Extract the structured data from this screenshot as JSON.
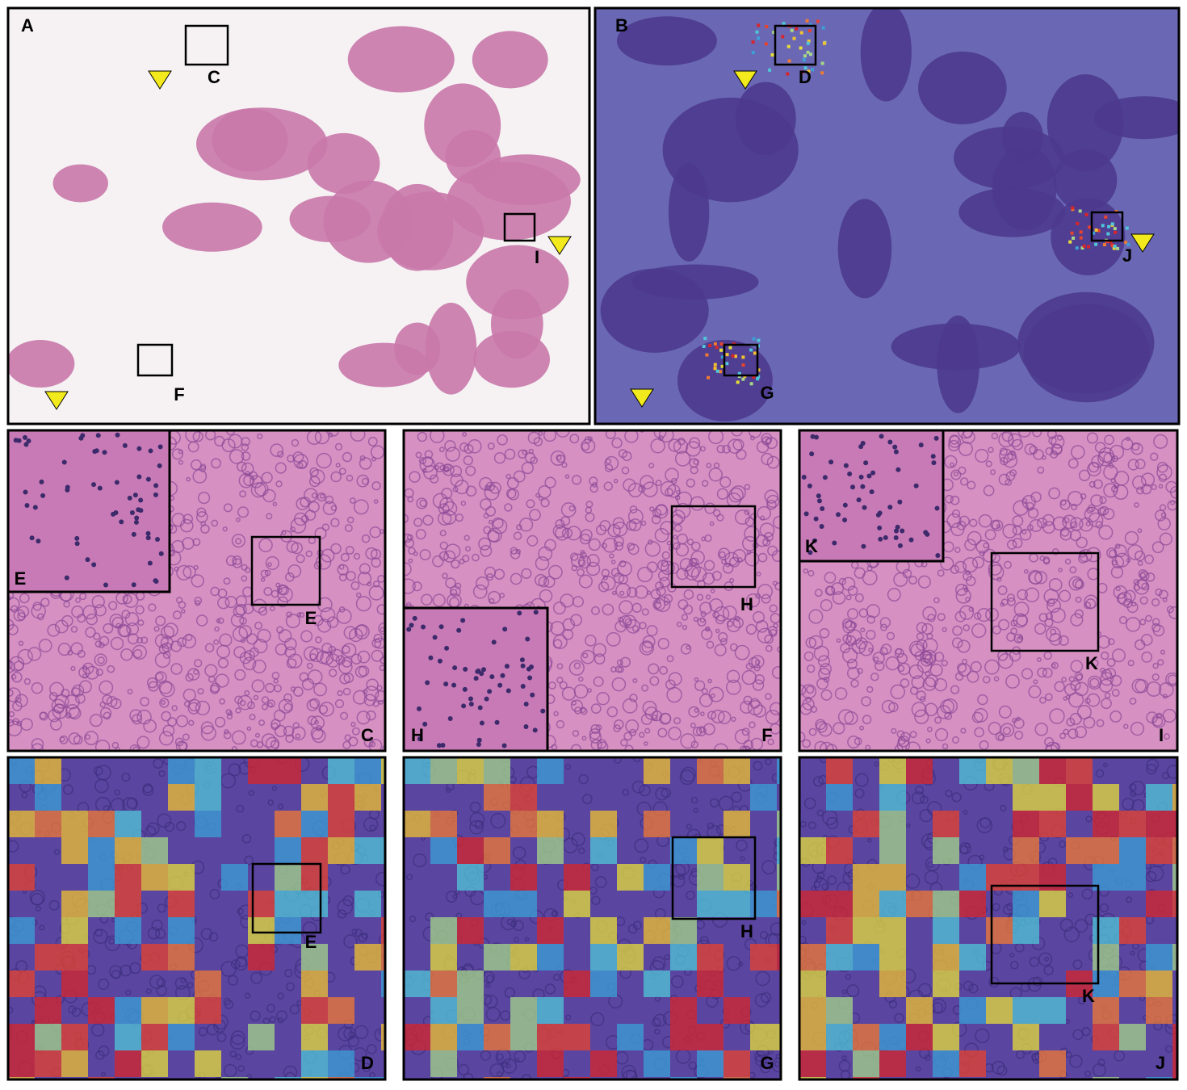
{
  "panels": [
    {
      "label": "A",
      "boxes": [
        "C",
        "I",
        "F"
      ]
    },
    {
      "label": "B",
      "boxes": [
        "D",
        "J",
        "G"
      ]
    },
    {
      "label": "C",
      "inset_label": "E",
      "boxes": [
        "E"
      ]
    },
    {
      "label": "F",
      "inset_label": "H",
      "boxes": [
        "H"
      ]
    },
    {
      "label": "I",
      "inset_label": "K",
      "boxes": [
        "K"
      ]
    },
    {
      "label": "D",
      "boxes": [
        "E"
      ]
    },
    {
      "label": "G",
      "boxes": [
        "H"
      ]
    },
    {
      "label": "J",
      "boxes": [
        "K"
      ]
    }
  ]
}
